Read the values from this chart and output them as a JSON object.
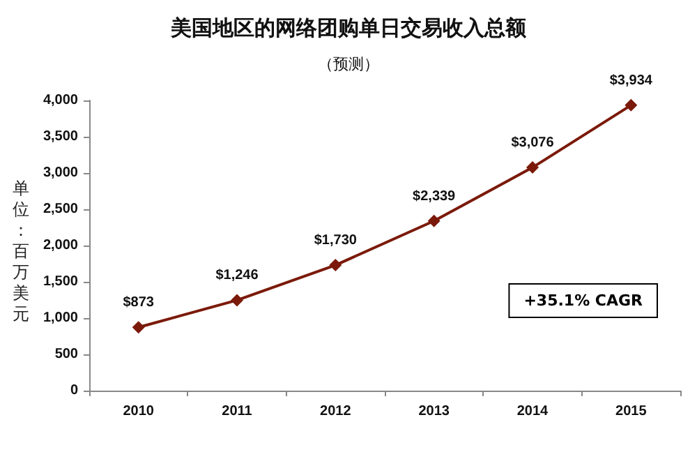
{
  "chart_data": {
    "type": "line",
    "title": "美国地区的网络团购单日交易收入总额",
    "subtitle": "（预测）",
    "ylabel": "单位：百万美元",
    "categories": [
      "2010",
      "2011",
      "2012",
      "2013",
      "2014",
      "2015"
    ],
    "values": [
      873,
      1246,
      1730,
      2339,
      3076,
      3934
    ],
    "value_labels": [
      "$873",
      "$1,246",
      "$1,730",
      "$2,339",
      "$3,076",
      "$3,934"
    ],
    "color": "#7b1a0a",
    "marker": "diamond",
    "line_style": "solid",
    "grid": false,
    "ylim": [
      0,
      4000
    ],
    "yticks": [
      0,
      500,
      {
        "value": 1000,
        "label": "1,000"
      },
      {
        "value": 1500,
        "label": "1,500"
      },
      {
        "value": 2000,
        "label": "2,000"
      },
      {
        "value": 2500,
        "label": "2,500"
      },
      {
        "value": 3000,
        "label": "3,000"
      },
      {
        "value": 3500,
        "label": "3,500"
      },
      {
        "value": 4000,
        "label": "4,000"
      }
    ],
    "annotations": [
      "+35.1% CAGR"
    ]
  }
}
